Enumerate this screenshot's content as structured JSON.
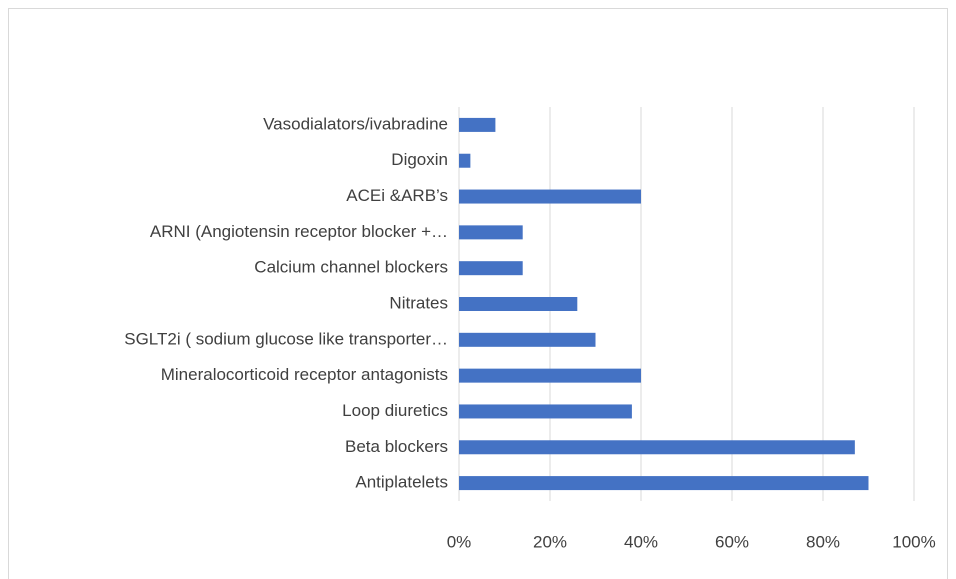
{
  "chart_data": {
    "type": "bar",
    "orientation": "horizontal",
    "categories": [
      "Vasodialators/ivabradine",
      "Digoxin",
      "ACEi &ARB’s",
      "ARNI  (Angiotensin receptor blocker +…",
      "Calcium channel blockers",
      "Nitrates",
      "SGLT2i  ( sodium glucose like transporter…",
      "Mineralocorticoid receptor antagonists",
      "Loop diuretics",
      "Beta blockers",
      "Antiplatelets"
    ],
    "values": [
      8,
      2.5,
      40,
      14,
      14,
      26,
      30,
      40,
      38,
      87,
      90
    ],
    "color": "#4472c4",
    "xlim": [
      0,
      100
    ],
    "xticks": [
      {
        "value": 0,
        "label": "0%"
      },
      {
        "value": 20,
        "label": "20%"
      },
      {
        "value": 40,
        "label": "40%"
      },
      {
        "value": 60,
        "label": "60%"
      },
      {
        "value": 80,
        "label": "80%"
      },
      {
        "value": 100,
        "label": "100%"
      }
    ],
    "grid": true
  }
}
